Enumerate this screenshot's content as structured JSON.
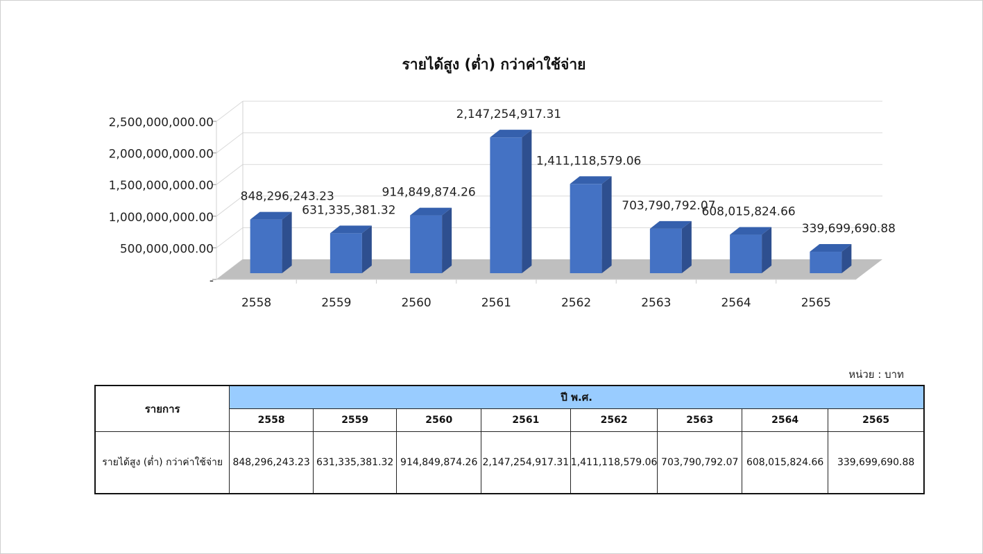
{
  "chart_data": {
    "type": "bar",
    "title": "รายได้สูง (ต่ำ) กว่าค่าใช้จ่าย",
    "categories": [
      "2558",
      "2559",
      "2560",
      "2561",
      "2562",
      "2563",
      "2564",
      "2565"
    ],
    "values": [
      848296243.23,
      631335381.32,
      914849874.26,
      2147254917.31,
      1411118579.06,
      703790792.07,
      608015824.66,
      339699690.88
    ],
    "value_labels": [
      "848,296,243.23",
      "631,335,381.32",
      "914,849,874.26",
      "2,147,254,917.31",
      "1,411,118,579.06",
      "703,790,792.07",
      "608,015,824.66",
      "339,699,690.88"
    ],
    "ylim": [
      0,
      2500000000
    ],
    "yticks": [
      0,
      500000000,
      1000000000,
      1500000000,
      2000000000,
      2500000000
    ],
    "ytick_labels": [
      "-",
      "500,000,000.00",
      "1,000,000,000.00",
      "1,500,000,000.00",
      "2,000,000,000.00",
      "2,500,000,000.00"
    ],
    "grid": true,
    "legend": "none",
    "colors": {
      "bar_front": "#4472c4",
      "bar_side": "#2e4f8f",
      "bar_top": "#3560ad",
      "floor": "#bfbfbf",
      "grid": "#d9d9d9"
    }
  },
  "table": {
    "unit_note": "หน่วย : บาท",
    "item_header": "รายการ",
    "year_header": "ปี พ.ศ.",
    "years": [
      "2558",
      "2559",
      "2560",
      "2561",
      "2562",
      "2563",
      "2564",
      "2565"
    ],
    "rows": [
      {
        "label": "รายได้สูง (ต่ำ) กว่าค่าใช้จ่าย",
        "values": [
          "848,296,243.23",
          "631,335,381.32",
          "914,849,874.26",
          "2,147,254,917.31",
          "1,411,118,579.06",
          "703,790,792.07",
          "608,015,824.66",
          "339,699,690.88"
        ]
      }
    ]
  }
}
